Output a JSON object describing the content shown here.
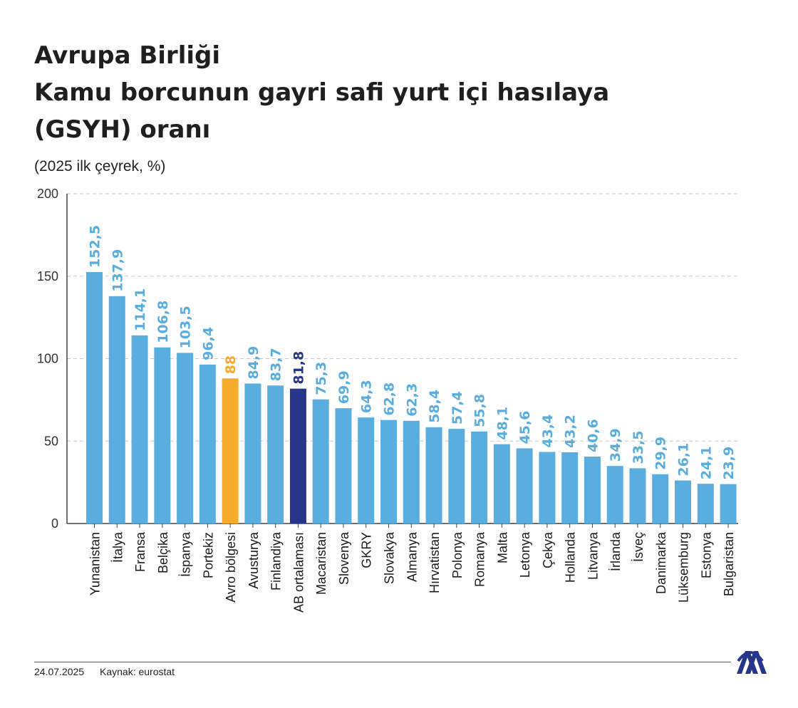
{
  "header": {
    "title_lines": [
      "Avrupa Birliği",
      "Kamu borcunun gayri safi yurt içi hasılaya",
      "(GSYH) oranı"
    ],
    "subtitle": "(2025 ilk çeyrek, %)"
  },
  "footer": {
    "date": "24.07.2025",
    "source": "Kaynak: eurostat",
    "logo_icon": "aa-logo-icon"
  },
  "colors": {
    "bar": "#5aaedf",
    "highlight_eurozone": "#f6ab2c",
    "highlight_eu_average": "#27358a",
    "grid": "#c8c8c8",
    "axis": "#444444"
  },
  "chart_data": {
    "type": "bar",
    "title": "Kamu borcunun gayri safi yurt içi hasılaya (GSYH) oranı",
    "categories": [
      "Yunanistan",
      "İtalya",
      "Fransa",
      "Belçika",
      "İspanya",
      "Portekiz",
      "Avro bölgesi",
      "Avusturya",
      "Finlandiya",
      "AB ortalaması",
      "Macaristan",
      "Slovenya",
      "GKRY",
      "Slovakya",
      "Almanya",
      "Hırvatistan",
      "Polonya",
      "Romanya",
      "Malta",
      "Letonya",
      "Çekya",
      "Hollanda",
      "Litvanya",
      "İrlanda",
      "İsveç",
      "Danimarka",
      "Lüksemburg",
      "Estonya",
      "Bulgaristan"
    ],
    "values": [
      152.5,
      137.9,
      114.1,
      106.8,
      103.5,
      96.4,
      88,
      84.9,
      83.7,
      81.8,
      75.3,
      69.9,
      64.3,
      62.8,
      62.3,
      58.4,
      57.4,
      55.8,
      48.1,
      45.6,
      43.4,
      43.2,
      40.6,
      34.9,
      33.5,
      29.9,
      26.1,
      24.1,
      23.9
    ],
    "value_labels": [
      "152,5",
      "137,9",
      "114,1",
      "106,8",
      "103,5",
      "96,4",
      "88",
      "84,9",
      "83,7",
      "81,8",
      "75,3",
      "69,9",
      "64,3",
      "62,8",
      "62,3",
      "58,4",
      "57,4",
      "55,8",
      "48,1",
      "45,6",
      "43,4",
      "43,2",
      "40,6",
      "34,9",
      "33,5",
      "29,9",
      "26,1",
      "24,1",
      "23,9"
    ],
    "highlights": {
      "Avro bölgesi": "#f6ab2c",
      "AB ortalaması": "#27358a"
    },
    "ylim": [
      0,
      200
    ],
    "yticks": [
      0,
      50,
      100,
      150,
      200
    ],
    "grid": true,
    "xlabel": "",
    "ylabel": ""
  }
}
